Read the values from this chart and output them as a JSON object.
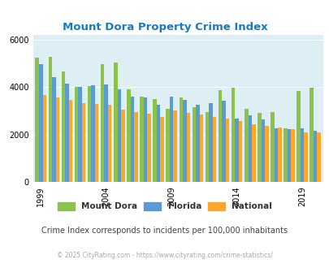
{
  "title": "Mount Dora Property Crime Index",
  "years": [
    1999,
    2000,
    2001,
    2002,
    2003,
    2004,
    2005,
    2006,
    2007,
    2008,
    2009,
    2010,
    2011,
    2012,
    2013,
    2014,
    2015,
    2016,
    2017,
    2018,
    2019,
    2020
  ],
  "mount_dora": [
    5250,
    5280,
    4650,
    4000,
    4050,
    4950,
    5050,
    3900,
    3600,
    3500,
    3100,
    3550,
    3150,
    2950,
    3880,
    3960,
    3100,
    2920,
    2960,
    2280,
    3850,
    3960
  ],
  "florida": [
    4950,
    4430,
    4150,
    4020,
    4070,
    4110,
    3900,
    3600,
    3580,
    3260,
    3600,
    3470,
    3250,
    3320,
    3420,
    2680,
    2800,
    2650,
    2280,
    2250,
    2270,
    2170
  ],
  "national": [
    3680,
    3580,
    3480,
    3340,
    3290,
    3270,
    3050,
    2960,
    2870,
    2750,
    3020,
    2920,
    2840,
    2760,
    2690,
    2570,
    2430,
    2370,
    2310,
    2240,
    2100,
    2100
  ],
  "tick_years": [
    1999,
    2004,
    2009,
    2014,
    2019
  ],
  "ylim": [
    0,
    6200
  ],
  "yticks": [
    0,
    2000,
    4000,
    6000
  ],
  "colors": {
    "mount_dora": "#8bc34a",
    "florida": "#5b9bd5",
    "national": "#ffa726",
    "plot_bg": "#ddeef5"
  },
  "legend_labels": [
    "Mount Dora",
    "Florida",
    "National"
  ],
  "subtitle": "Crime Index corresponds to incidents per 100,000 inhabitants",
  "copyright": "© 2025 CityRating.com - https://www.cityrating.com/crime-statistics/",
  "title_color": "#1a7abf",
  "subtitle_color": "#444444",
  "copyright_color": "#aaaaaa"
}
